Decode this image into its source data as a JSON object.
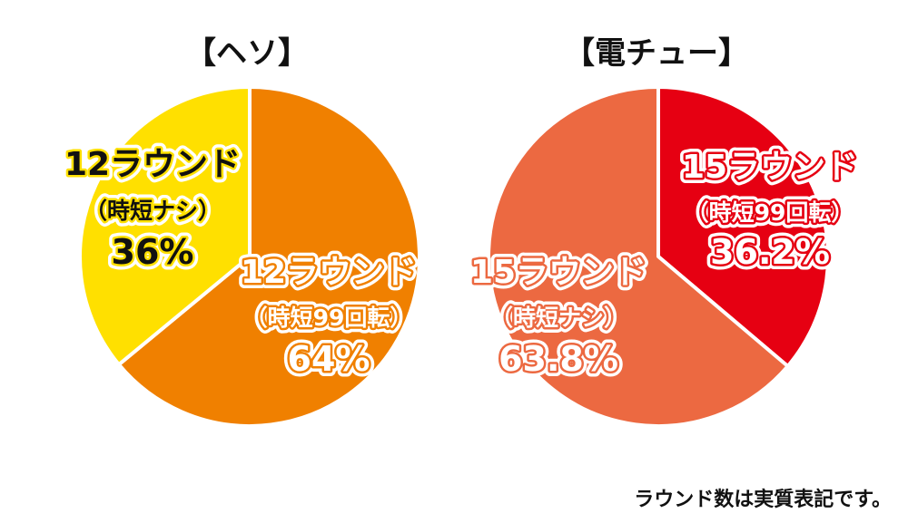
{
  "chart_data": [
    {
      "type": "pie",
      "title": "【ヘソ】",
      "slices": [
        {
          "label_lines": [
            "12ラウンド",
            "（時短99回転）",
            "64%"
          ],
          "value": 64,
          "color": "#f08000",
          "text_fill": "#ffffff",
          "text_stroke": "#f08000"
        },
        {
          "label_lines": [
            "12ラウンド",
            "（時短ナシ）",
            "36%"
          ],
          "value": 36,
          "color": "#ffe000",
          "text_fill": "#111111",
          "text_stroke": "#ffe000"
        }
      ]
    },
    {
      "type": "pie",
      "title": "【電チュー】",
      "slices": [
        {
          "label_lines": [
            "15ラウンド",
            "（時短99回転）",
            "36.2%"
          ],
          "value": 36.2,
          "color": "#e60012",
          "text_fill": "#ffffff",
          "text_stroke": "#e60012"
        },
        {
          "label_lines": [
            "15ラウンド",
            "（時短ナシ）",
            "63.8%"
          ],
          "value": 63.8,
          "color": "#ec6941",
          "text_fill": "#ffffff",
          "text_stroke": "#ec6941"
        }
      ]
    }
  ],
  "footnote": "ラウンド数は実質表記です。"
}
